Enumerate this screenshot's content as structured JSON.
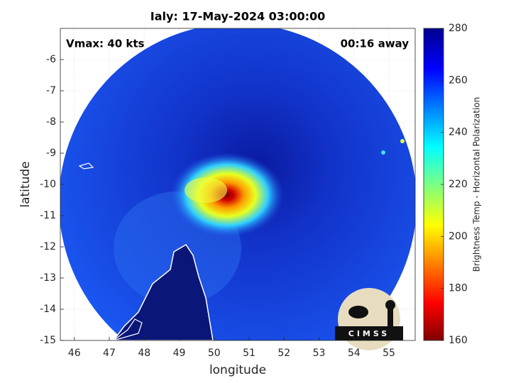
{
  "chart_data": {
    "type": "image",
    "title": "Ialy: 17-May-2024 03:00:00",
    "annotations": [
      "Vmax: 40 kts",
      "00:16 away"
    ],
    "x_label": "longitude",
    "y_label": "latitude",
    "xlim": [
      45.6,
      55.75
    ],
    "xticks": [
      46,
      47,
      48,
      49,
      50,
      51,
      52,
      53,
      54,
      55
    ],
    "ylim": [
      -15,
      -5
    ],
    "yticks": [
      -15,
      -14,
      -13,
      -12,
      -11,
      -10,
      -9,
      -8,
      -7,
      -6
    ],
    "grid": true,
    "colorbar": {
      "label": "Brightness Temp - Horizontal Polarization",
      "lim": [
        160,
        280
      ],
      "ticks": [
        160,
        180,
        200,
        220,
        240,
        260,
        280
      ],
      "colormap": "jet"
    },
    "logo": "CIMSS"
  }
}
